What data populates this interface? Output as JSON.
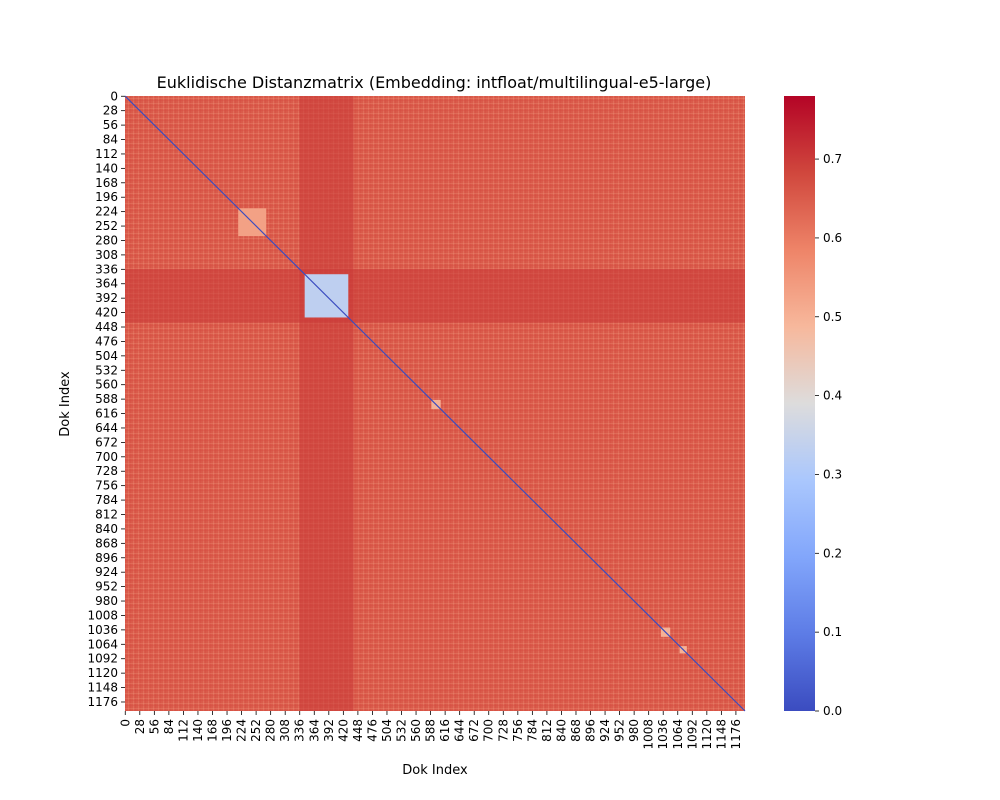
{
  "chart_data": {
    "type": "heatmap",
    "title": "Euklidische Distanzmatrix (Embedding: intfloat/multilingual-e5-large)",
    "xlabel": "Dok Index",
    "ylabel": "Dok Index",
    "n": 1194,
    "x_tick_labels": [
      "0",
      "28",
      "56",
      "84",
      "112",
      "140",
      "168",
      "196",
      "224",
      "252",
      "280",
      "308",
      "336",
      "364",
      "392",
      "420",
      "448",
      "476",
      "504",
      "532",
      "560",
      "588",
      "616",
      "644",
      "672",
      "700",
      "728",
      "756",
      "784",
      "812",
      "840",
      "868",
      "896",
      "924",
      "952",
      "980",
      "1008",
      "1036",
      "1064",
      "1092",
      "1120",
      "1148",
      "1176"
    ],
    "y_tick_labels": [
      "0",
      "28",
      "56",
      "84",
      "112",
      "140",
      "168",
      "196",
      "224",
      "252",
      "280",
      "308",
      "336",
      "364",
      "392",
      "420",
      "448",
      "476",
      "504",
      "532",
      "560",
      "588",
      "616",
      "644",
      "672",
      "700",
      "728",
      "756",
      "784",
      "812",
      "840",
      "868",
      "896",
      "924",
      "952",
      "980",
      "1008",
      "1036",
      "1064",
      "1092",
      "1120",
      "1148",
      "1176"
    ],
    "colorbar": {
      "colormap": "coolwarm",
      "vmin": 0.0,
      "vmax": 0.78,
      "tick_labels": [
        "0.0",
        "0.1",
        "0.2",
        "0.3",
        "0.4",
        "0.5",
        "0.6",
        "0.7"
      ]
    },
    "typical_distance": 0.65,
    "diagonal_value": 0.0,
    "clusters": [
      {
        "start": 218,
        "end": 272,
        "within_distance": 0.53
      },
      {
        "start": 346,
        "end": 430,
        "within_distance": 0.33
      },
      {
        "start": 590,
        "end": 608,
        "within_distance": 0.5
      },
      {
        "start": 1032,
        "end": 1050,
        "within_distance": 0.5
      },
      {
        "start": 1068,
        "end": 1082,
        "within_distance": 0.5
      }
    ],
    "high_distance_band": {
      "start": 336,
      "end": 440,
      "distance": 0.7
    }
  }
}
